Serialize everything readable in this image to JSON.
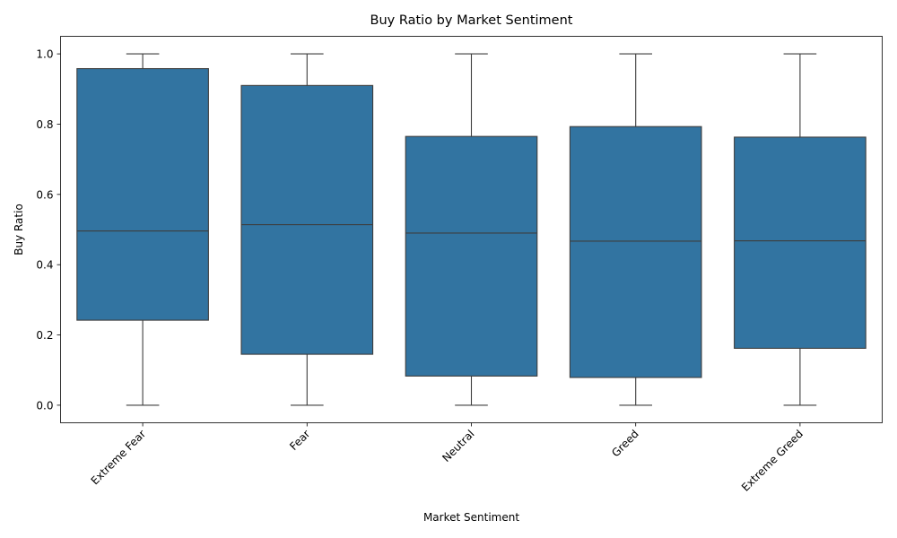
{
  "chart_data": {
    "type": "box",
    "title": "Buy Ratio by Market Sentiment",
    "xlabel": "Market Sentiment",
    "ylabel": "Buy Ratio",
    "ylim": [
      -0.05,
      1.05
    ],
    "yticks": [
      "0.0",
      "0.2",
      "0.4",
      "0.6",
      "0.8",
      "1.0"
    ],
    "ytick_values": [
      0.0,
      0.2,
      0.4,
      0.6,
      0.8,
      1.0
    ],
    "grid": false,
    "legend": "none",
    "categories": [
      "Extreme Fear",
      "Fear",
      "Neutral",
      "Greed",
      "Extreme Greed"
    ],
    "boxes": [
      {
        "category": "Extreme Fear",
        "whisker_low": 0.0,
        "q1": 0.242,
        "median": 0.496,
        "q3": 0.958,
        "whisker_high": 1.0
      },
      {
        "category": "Fear",
        "whisker_low": 0.0,
        "q1": 0.145,
        "median": 0.514,
        "q3": 0.91,
        "whisker_high": 1.0
      },
      {
        "category": "Neutral",
        "whisker_low": 0.0,
        "q1": 0.083,
        "median": 0.49,
        "q3": 0.765,
        "whisker_high": 1.0
      },
      {
        "category": "Greed",
        "whisker_low": 0.0,
        "q1": 0.079,
        "median": 0.467,
        "q3": 0.793,
        "whisker_high": 1.0
      },
      {
        "category": "Extreme Greed",
        "whisker_low": 0.0,
        "q1": 0.162,
        "median": 0.468,
        "q3": 0.763,
        "whisker_high": 1.0
      }
    ],
    "colors": {
      "box_fill": "#3274a1",
      "line": "#3d3d3d",
      "axis": "#000000"
    }
  }
}
